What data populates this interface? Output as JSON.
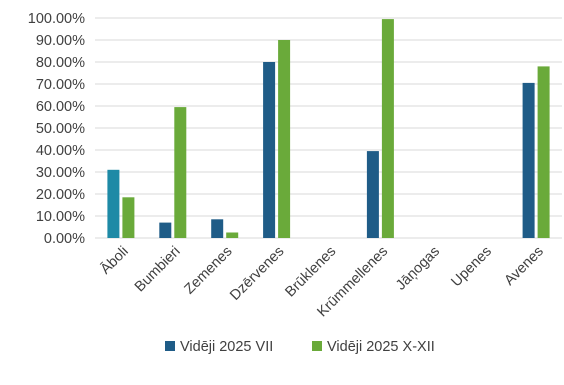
{
  "chart_data": {
    "type": "bar",
    "categories": [
      "Āboli",
      "Bumbieri",
      "Zemenes",
      "Dzērvenes",
      "Brūklenes",
      "Krūmmellenes",
      "Jāņogas",
      "Upenes",
      "Avenes"
    ],
    "series": [
      {
        "name": "Vidēji 2025 VII",
        "color": "#1f5c87",
        "values": [
          null,
          7,
          8.5,
          80,
          null,
          39.5,
          null,
          null,
          70.5
        ]
      },
      {
        "name": "Vidēji 2025 X-XII",
        "color": "#6aaa3a",
        "values": [
          18.5,
          59.5,
          2.5,
          90,
          null,
          99.5,
          null,
          null,
          78
        ]
      }
    ],
    "special_bars": [
      {
        "category": "Āboli",
        "series": 0,
        "value": 31,
        "color": "#1e8aa6"
      }
    ],
    "y_ticks": [
      "0.00%",
      "10.00%",
      "20.00%",
      "30.00%",
      "40.00%",
      "50.00%",
      "60.00%",
      "70.00%",
      "80.00%",
      "90.00%",
      "100.00%"
    ],
    "ylim": [
      0,
      100
    ],
    "grid": true,
    "legend_position": "bottom"
  }
}
